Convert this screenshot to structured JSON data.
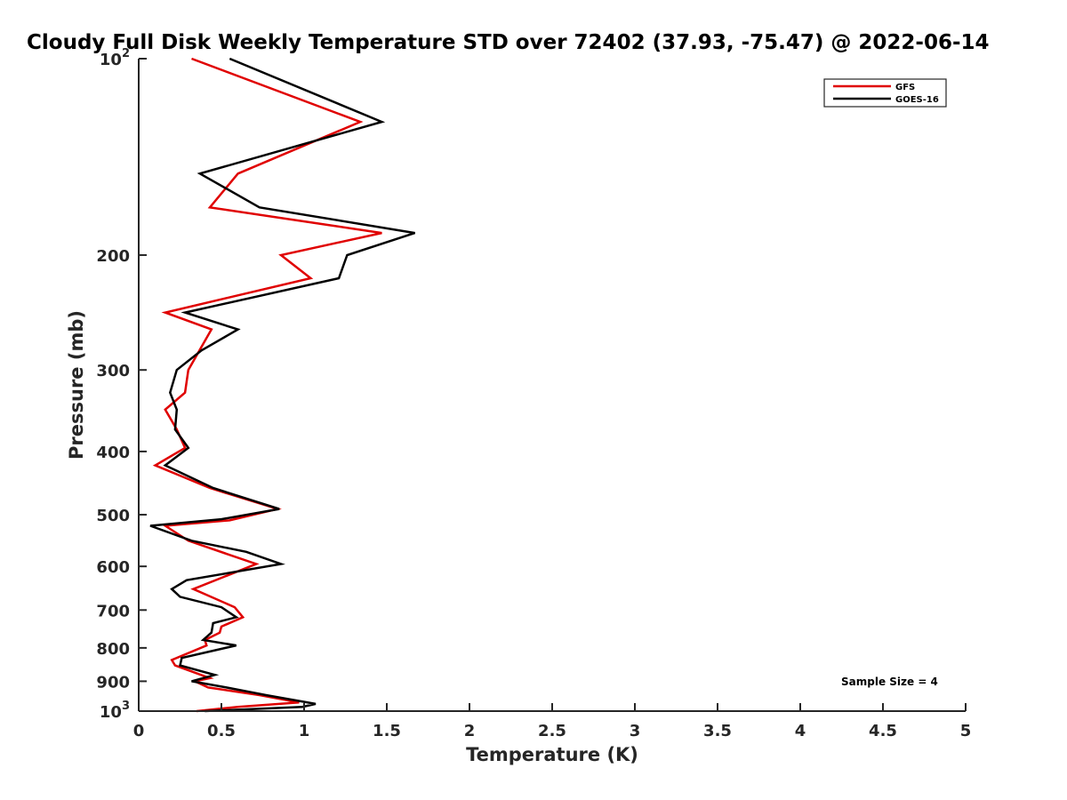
{
  "chart_data": {
    "type": "line",
    "title": "Cloudy Full Disk Weekly Temperature STD over 72402 (37.93, -75.47) @ 2022-06-14",
    "xlabel": "Temperature (K)",
    "ylabel": "Pressure (mb)",
    "xlim": [
      0,
      5
    ],
    "ylim": [
      100,
      1000
    ],
    "y_scale": "log",
    "y_reversed": true,
    "grid": false,
    "legend_position": "top-right",
    "x_ticks": [
      {
        "value": 0,
        "label": "0"
      },
      {
        "value": 0.5,
        "label": "0.5"
      },
      {
        "value": 1,
        "label": "1"
      },
      {
        "value": 1.5,
        "label": "1.5"
      },
      {
        "value": 2,
        "label": "2"
      },
      {
        "value": 2.5,
        "label": "2.5"
      },
      {
        "value": 3,
        "label": "3"
      },
      {
        "value": 3.5,
        "label": "3.5"
      },
      {
        "value": 4,
        "label": "4"
      },
      {
        "value": 4.5,
        "label": "4.5"
      },
      {
        "value": 5,
        "label": "5"
      }
    ],
    "y_ticks": [
      {
        "value": 100,
        "label": "10",
        "exp": "2"
      },
      {
        "value": 200,
        "label": "200",
        "exp": ""
      },
      {
        "value": 300,
        "label": "300",
        "exp": ""
      },
      {
        "value": 400,
        "label": "400",
        "exp": ""
      },
      {
        "value": 500,
        "label": "500",
        "exp": ""
      },
      {
        "value": 600,
        "label": "600",
        "exp": ""
      },
      {
        "value": 700,
        "label": "700",
        "exp": ""
      },
      {
        "value": 800,
        "label": "800",
        "exp": ""
      },
      {
        "value": 900,
        "label": "900",
        "exp": ""
      },
      {
        "value": 1000,
        "label": "10",
        "exp": "3"
      }
    ],
    "series": [
      {
        "name": "GFS",
        "color": "#e00000",
        "points": [
          [
            0.32,
            100
          ],
          [
            1.34,
            125
          ],
          [
            0.6,
            150
          ],
          [
            0.43,
            169
          ],
          [
            1.47,
            185
          ],
          [
            0.86,
            200
          ],
          [
            1.04,
            217
          ],
          [
            0.16,
            245
          ],
          [
            0.44,
            260
          ],
          [
            0.3,
            300
          ],
          [
            0.28,
            325
          ],
          [
            0.16,
            345
          ],
          [
            0.23,
            370
          ],
          [
            0.28,
            395
          ],
          [
            0.1,
            420
          ],
          [
            0.43,
            455
          ],
          [
            0.84,
            490
          ],
          [
            0.55,
            510
          ],
          [
            0.16,
            520
          ],
          [
            0.3,
            548
          ],
          [
            0.71,
            595
          ],
          [
            0.33,
            650
          ],
          [
            0.58,
            693
          ],
          [
            0.63,
            718
          ],
          [
            0.5,
            742
          ],
          [
            0.49,
            758
          ],
          [
            0.4,
            778
          ],
          [
            0.41,
            793
          ],
          [
            0.2,
            835
          ],
          [
            0.22,
            851
          ],
          [
            0.43,
            890
          ],
          [
            0.34,
            900
          ],
          [
            0.42,
            920
          ],
          [
            0.73,
            945
          ],
          [
            0.97,
            970
          ],
          [
            0.6,
            985
          ],
          [
            0.35,
            1000
          ]
        ]
      },
      {
        "name": "GOES-16",
        "color": "#000000",
        "points": [
          [
            0.55,
            100
          ],
          [
            1.47,
            125
          ],
          [
            0.37,
            150
          ],
          [
            0.73,
            169
          ],
          [
            1.67,
            185
          ],
          [
            1.26,
            200
          ],
          [
            1.21,
            217
          ],
          [
            0.28,
            245
          ],
          [
            0.6,
            260
          ],
          [
            0.38,
            280
          ],
          [
            0.23,
            300
          ],
          [
            0.19,
            325
          ],
          [
            0.23,
            345
          ],
          [
            0.22,
            370
          ],
          [
            0.3,
            395
          ],
          [
            0.16,
            420
          ],
          [
            0.45,
            455
          ],
          [
            0.85,
            490
          ],
          [
            0.5,
            508
          ],
          [
            0.07,
            520
          ],
          [
            0.32,
            548
          ],
          [
            0.65,
            570
          ],
          [
            0.86,
            595
          ],
          [
            0.29,
            630
          ],
          [
            0.2,
            650
          ],
          [
            0.25,
            668
          ],
          [
            0.5,
            693
          ],
          [
            0.59,
            718
          ],
          [
            0.45,
            733
          ],
          [
            0.44,
            758
          ],
          [
            0.39,
            778
          ],
          [
            0.59,
            793
          ],
          [
            0.26,
            829
          ],
          [
            0.25,
            851
          ],
          [
            0.46,
            880
          ],
          [
            0.32,
            900
          ],
          [
            0.53,
            920
          ],
          [
            0.77,
            945
          ],
          [
            1.07,
            975
          ],
          [
            0.99,
            985
          ],
          [
            0.4,
            1000
          ]
        ]
      }
    ],
    "annotation": "Sample Size = 4"
  }
}
